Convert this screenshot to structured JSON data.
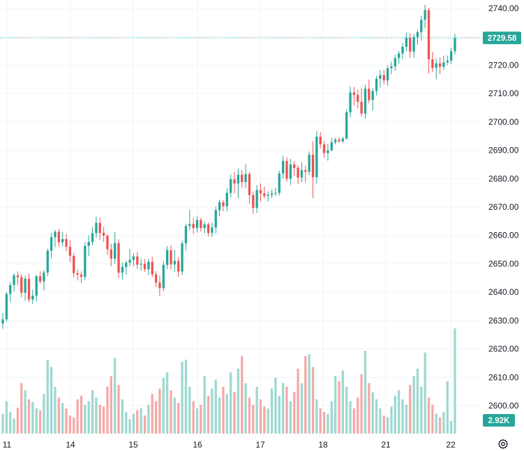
{
  "chart_data": {
    "type": "candlestick",
    "y_axis": {
      "ticks": [
        "2600.00",
        "2610.00",
        "2620.00",
        "2630.00",
        "2640.00",
        "2650.00",
        "2660.00",
        "2670.00",
        "2680.00",
        "2690.00",
        "2700.00",
        "2710.00",
        "2720.00",
        "2730.00",
        "2740.00"
      ],
      "tick_values": [
        2600,
        2610,
        2620,
        2630,
        2640,
        2650,
        2660,
        2670,
        2680,
        2690,
        2700,
        2710,
        2720,
        2730,
        2740
      ],
      "range": [
        2596,
        2742
      ],
      "position": "right"
    },
    "x_axis": {
      "ticks": [
        "11",
        "14",
        "15",
        "16",
        "17",
        "18",
        "21",
        "22"
      ]
    },
    "last_price": {
      "value": 2729.58,
      "label": "2729.58",
      "color": "#26a69a"
    },
    "volume_label": {
      "label": "2.92K",
      "color": "#26a69a"
    },
    "colors": {
      "up": "#26a69a",
      "down": "#ef5350",
      "volume_up": "#9fd8d0",
      "volume_down": "#f5a9a8",
      "grid": "#f0f3fa"
    },
    "grid": true,
    "volume_scale_max": 3000,
    "ohlc": [
      [
        2629.0,
        2632.6,
        2627.1,
        2630.4
      ],
      [
        2630.4,
        2640.1,
        2629.6,
        2639.4
      ],
      [
        2639.4,
        2643.5,
        2636.5,
        2642.5
      ],
      [
        2642.5,
        2646.6,
        2640.2,
        2645.9
      ],
      [
        2645.9,
        2647.3,
        2642.4,
        2645.3
      ],
      [
        2645.3,
        2646.4,
        2638.2,
        2639.8
      ],
      [
        2639.8,
        2645.8,
        2636.9,
        2644.7
      ],
      [
        2644.7,
        2646.5,
        2636.4,
        2637.4
      ],
      [
        2637.4,
        2640.9,
        2635.9,
        2638.8
      ],
      [
        2638.8,
        2646.1,
        2636.7,
        2645.6
      ],
      [
        2645.6,
        2647.4,
        2643.0,
        2643.8
      ],
      [
        2643.8,
        2647.8,
        2640.6,
        2646.9
      ],
      [
        2646.9,
        2655.4,
        2645.6,
        2654.6
      ],
      [
        2654.6,
        2660.9,
        2652.0,
        2659.4
      ],
      [
        2659.4,
        2661.9,
        2655.8,
        2661.3
      ],
      [
        2661.3,
        2662.4,
        2655.9,
        2657.6
      ],
      [
        2657.6,
        2661.3,
        2656.1,
        2658.7
      ],
      [
        2658.7,
        2660.5,
        2654.4,
        2656.0
      ],
      [
        2656.0,
        2658.3,
        2650.6,
        2652.8
      ],
      [
        2652.8,
        2653.8,
        2645.1,
        2646.7
      ],
      [
        2646.7,
        2648.0,
        2644.1,
        2646.2
      ],
      [
        2646.2,
        2647.3,
        2643.2,
        2645.4
      ],
      [
        2645.4,
        2657.6,
        2644.3,
        2656.3
      ],
      [
        2656.3,
        2660.0,
        2652.7,
        2657.7
      ],
      [
        2657.7,
        2662.9,
        2656.5,
        2660.8
      ],
      [
        2660.8,
        2666.7,
        2659.2,
        2664.4
      ],
      [
        2664.4,
        2666.2,
        2658.5,
        2660.9
      ],
      [
        2660.9,
        2663.0,
        2657.7,
        2659.9
      ],
      [
        2659.9,
        2660.4,
        2653.2,
        2655.1
      ],
      [
        2655.1,
        2657.2,
        2649.1,
        2651.8
      ],
      [
        2651.8,
        2661.2,
        2650.0,
        2657.3
      ],
      [
        2657.3,
        2658.6,
        2645.0,
        2646.9
      ],
      [
        2646.9,
        2650.6,
        2644.4,
        2648.9
      ],
      [
        2648.9,
        2651.0,
        2646.3,
        2650.4
      ],
      [
        2650.4,
        2655.2,
        2649.2,
        2651.4
      ],
      [
        2651.4,
        2653.7,
        2649.2,
        2652.6
      ],
      [
        2652.6,
        2654.2,
        2648.2,
        2649.7
      ],
      [
        2649.7,
        2651.7,
        2647.6,
        2650.0
      ],
      [
        2650.0,
        2651.6,
        2647.2,
        2648.1
      ],
      [
        2648.1,
        2651.8,
        2646.0,
        2650.7
      ],
      [
        2650.7,
        2652.5,
        2645.2,
        2646.3
      ],
      [
        2646.3,
        2647.4,
        2641.8,
        2643.4
      ],
      [
        2643.4,
        2645.9,
        2638.6,
        2641.4
      ],
      [
        2641.4,
        2651.0,
        2640.3,
        2649.6
      ],
      [
        2649.6,
        2656.3,
        2648.2,
        2654.8
      ],
      [
        2654.8,
        2656.6,
        2648.0,
        2649.8
      ],
      [
        2649.8,
        2654.9,
        2647.1,
        2651.0
      ],
      [
        2651.0,
        2652.4,
        2645.4,
        2647.3
      ],
      [
        2647.3,
        2658.1,
        2646.0,
        2657.2
      ],
      [
        2657.2,
        2664.1,
        2654.6,
        2663.3
      ],
      [
        2663.3,
        2669.0,
        2661.8,
        2664.0
      ],
      [
        2664.0,
        2666.1,
        2660.5,
        2662.6
      ],
      [
        2662.6,
        2666.7,
        2661.0,
        2665.4
      ],
      [
        2665.4,
        2666.2,
        2661.4,
        2662.6
      ],
      [
        2662.6,
        2664.8,
        2660.7,
        2663.9
      ],
      [
        2663.9,
        2664.6,
        2659.6,
        2660.9
      ],
      [
        2660.9,
        2664.5,
        2659.4,
        2662.8
      ],
      [
        2662.8,
        2670.2,
        2660.7,
        2668.9
      ],
      [
        2668.9,
        2672.6,
        2666.7,
        2671.7
      ],
      [
        2671.7,
        2672.4,
        2668.5,
        2670.3
      ],
      [
        2670.3,
        2676.7,
        2668.5,
        2675.0
      ],
      [
        2675.0,
        2681.4,
        2673.4,
        2679.8
      ],
      [
        2679.8,
        2682.3,
        2674.8,
        2678.3
      ],
      [
        2678.3,
        2683.6,
        2673.1,
        2681.4
      ],
      [
        2681.4,
        2683.0,
        2676.8,
        2678.8
      ],
      [
        2678.8,
        2685.2,
        2676.6,
        2681.6
      ],
      [
        2681.6,
        2682.4,
        2671.1,
        2674.2
      ],
      [
        2674.2,
        2675.5,
        2667.6,
        2669.7
      ],
      [
        2669.7,
        2677.7,
        2667.9,
        2676.0
      ],
      [
        2676.0,
        2678.4,
        2671.9,
        2674.8
      ],
      [
        2674.8,
        2677.2,
        2673.1,
        2673.9
      ],
      [
        2673.9,
        2675.5,
        2671.9,
        2674.3
      ],
      [
        2674.3,
        2676.1,
        2673.1,
        2674.8
      ],
      [
        2674.8,
        2676.8,
        2673.9,
        2675.0
      ],
      [
        2675.0,
        2682.8,
        2674.1,
        2681.8
      ],
      [
        2681.8,
        2688.1,
        2680.0,
        2686.2
      ],
      [
        2686.2,
        2687.5,
        2678.9,
        2680.0
      ],
      [
        2680.0,
        2687.0,
        2677.7,
        2685.0
      ],
      [
        2685.0,
        2686.2,
        2680.9,
        2683.8
      ],
      [
        2683.8,
        2684.7,
        2678.1,
        2680.4
      ],
      [
        2680.4,
        2685.8,
        2678.8,
        2683.0
      ],
      [
        2683.0,
        2684.6,
        2678.7,
        2682.4
      ],
      [
        2682.4,
        2689.6,
        2681.3,
        2688.4
      ],
      [
        2688.4,
        2693.2,
        2673.2,
        2680.5
      ],
      [
        2680.5,
        2696.8,
        2678.2,
        2694.8
      ],
      [
        2694.8,
        2696.4,
        2690.6,
        2692.1
      ],
      [
        2692.1,
        2693.2,
        2687.4,
        2689.0
      ],
      [
        2689.0,
        2692.3,
        2686.3,
        2690.0
      ],
      [
        2690.0,
        2694.3,
        2689.6,
        2692.8
      ],
      [
        2692.8,
        2694.4,
        2692.1,
        2693.7
      ],
      [
        2693.7,
        2694.5,
        2692.6,
        2693.2
      ],
      [
        2693.2,
        2694.8,
        2692.5,
        2694.1
      ],
      [
        2694.1,
        2704.5,
        2693.8,
        2703.4
      ],
      [
        2703.4,
        2712.5,
        2701.6,
        2710.4
      ],
      [
        2710.4,
        2712.3,
        2705.7,
        2709.5
      ],
      [
        2709.5,
        2711.4,
        2704.8,
        2707.1
      ],
      [
        2707.1,
        2711.9,
        2701.8,
        2702.9
      ],
      [
        2702.9,
        2713.1,
        2701.1,
        2711.7
      ],
      [
        2711.7,
        2714.9,
        2706.5,
        2707.7
      ],
      [
        2707.7,
        2712.0,
        2704.0,
        2710.9
      ],
      [
        2710.9,
        2716.1,
        2709.4,
        2715.2
      ],
      [
        2715.2,
        2718.3,
        2712.1,
        2716.5
      ],
      [
        2716.5,
        2718.4,
        2713.2,
        2714.6
      ],
      [
        2714.6,
        2719.8,
        2712.7,
        2718.9
      ],
      [
        2718.9,
        2721.2,
        2716.8,
        2719.6
      ],
      [
        2719.6,
        2723.6,
        2718.0,
        2722.5
      ],
      [
        2722.5,
        2725.0,
        2720.5,
        2724.1
      ],
      [
        2724.1,
        2727.8,
        2722.1,
        2726.5
      ],
      [
        2726.5,
        2731.4,
        2724.8,
        2729.7
      ],
      [
        2729.7,
        2731.2,
        2722.6,
        2724.8
      ],
      [
        2724.8,
        2731.0,
        2722.6,
        2729.9
      ],
      [
        2729.9,
        2732.4,
        2727.2,
        2731.6
      ],
      [
        2731.6,
        2737.4,
        2728.6,
        2736.0
      ],
      [
        2736.0,
        2741.2,
        2733.0,
        2739.4
      ],
      [
        2739.4,
        2740.2,
        2717.0,
        2722.1
      ],
      [
        2722.1,
        2724.7,
        2717.5,
        2719.0
      ],
      [
        2719.0,
        2722.3,
        2715.0,
        2720.6
      ],
      [
        2720.6,
        2722.8,
        2716.8,
        2719.4
      ],
      [
        2719.4,
        2723.3,
        2718.3,
        2721.0
      ],
      [
        2721.0,
        2723.4,
        2720.0,
        2721.6
      ],
      [
        2721.6,
        2726.2,
        2720.5,
        2724.9
      ],
      [
        2724.9,
        2731.0,
        2723.8,
        2729.58
      ]
    ],
    "volume": [
      0.55,
      0.9,
      0.6,
      0.42,
      0.72,
      1.4,
      1.2,
      0.95,
      0.88,
      0.7,
      0.65,
      1.1,
      2.05,
      1.85,
      1.3,
      1.0,
      0.85,
      0.7,
      0.5,
      0.45,
      0.95,
      1.05,
      0.8,
      0.9,
      1.2,
      1.0,
      0.8,
      0.75,
      1.3,
      1.6,
      2.1,
      1.35,
      0.95,
      0.6,
      0.4,
      0.55,
      0.65,
      0.7,
      0.5,
      0.8,
      1.1,
      0.9,
      1.25,
      1.55,
      1.7,
      1.2,
      1.0,
      0.85,
      2.0,
      2.05,
      1.3,
      0.9,
      0.7,
      0.8,
      1.6,
      1.05,
      1.25,
      1.5,
      1.0,
      1.3,
      1.1,
      1.7,
      1.15,
      1.8,
      2.15,
      1.4,
      1.0,
      0.8,
      1.3,
      0.95,
      0.75,
      0.7,
      1.25,
      1.55,
      1.05,
      1.4,
      1.3,
      0.9,
      1.15,
      1.8,
      1.4,
      2.15,
      2.2,
      1.85,
      0.95,
      0.7,
      0.6,
      0.55,
      0.9,
      1.6,
      1.45,
      1.75,
      1.3,
      0.9,
      0.7,
      1.0,
      1.65,
      2.3,
      1.4,
      1.15,
      0.95,
      0.7,
      0.5,
      0.45,
      0.75,
      1.05,
      1.2,
      0.95,
      0.8,
      1.35,
      1.6,
      1.8,
      1.3,
      2.25,
      1.0,
      0.8,
      0.55,
      0.45,
      0.6,
      1.45,
      0.35,
      2.92
    ]
  }
}
